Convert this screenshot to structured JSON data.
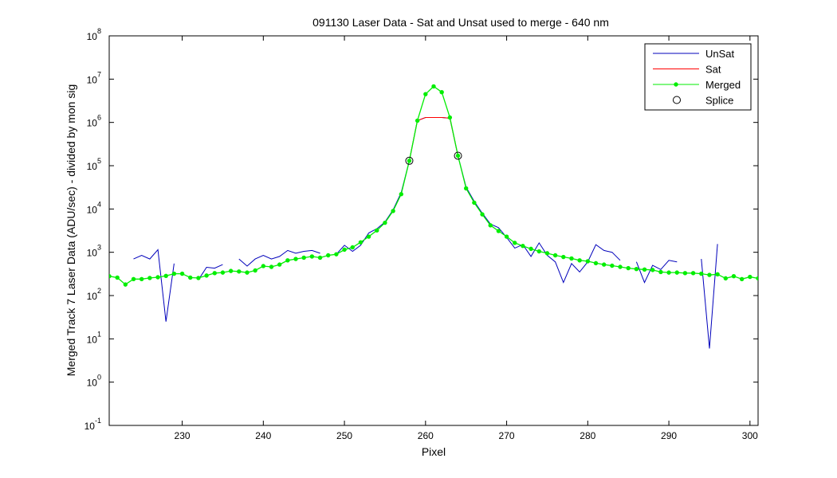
{
  "chart_data": {
    "type": "line",
    "title": "091130 Laser Data - Sat and Unsat used to merge  - 640 nm",
    "xlabel": "Pixel",
    "ylabel": "Merged Track 7 Laser Data (ADU/sec) - divided by mon sig",
    "xlim": [
      221,
      301
    ],
    "ylim_log10": [
      -1,
      8
    ],
    "y_scale": "log",
    "x_ticks": [
      230,
      240,
      250,
      260,
      270,
      280,
      290,
      300
    ],
    "y_tick_base": "10",
    "y_tick_exponents": [
      "-1",
      "0",
      "1",
      "2",
      "3",
      "4",
      "5",
      "6",
      "7",
      "8"
    ],
    "grid": false,
    "legend_position": "top-right",
    "series": [
      {
        "name": "UnSat",
        "color": "#0000bb",
        "style": "line",
        "segments": [
          [
            [
              224,
              700
            ],
            [
              225,
              850
            ],
            [
              226,
              700
            ],
            [
              227,
              1150
            ],
            [
              228,
              25
            ],
            [
              229,
              550
            ]
          ],
          [
            [
              232,
              230
            ],
            [
              233,
              450
            ],
            [
              234,
              430
            ],
            [
              235,
              520
            ]
          ],
          [
            [
              237,
              700
            ],
            [
              238,
              480
            ],
            [
              239,
              700
            ],
            [
              240,
              850
            ],
            [
              241,
              700
            ],
            [
              242,
              800
            ],
            [
              243,
              1100
            ],
            [
              244,
              950
            ],
            [
              245,
              1050
            ],
            [
              246,
              1100
            ],
            [
              247,
              950
            ]
          ],
          [
            [
              249,
              900
            ],
            [
              250,
              1450
            ],
            [
              251,
              1050
            ],
            [
              252,
              1450
            ],
            [
              253,
              2800
            ],
            [
              254,
              3500
            ],
            [
              255,
              5000
            ],
            [
              256,
              9500
            ],
            [
              257,
              24000
            ],
            [
              258,
              130000
            ],
            [
              259,
              1100000
            ],
            [
              260,
              1300000
            ],
            [
              261,
              1300000
            ],
            [
              262,
              1300000
            ],
            [
              263,
              1250000
            ],
            [
              264,
              170000
            ],
            [
              265,
              32000
            ],
            [
              266,
              15000
            ],
            [
              267,
              8000
            ],
            [
              268,
              4500
            ],
            [
              269,
              3700
            ],
            [
              270,
              2200
            ],
            [
              271,
              1250
            ],
            [
              272,
              1500
            ],
            [
              273,
              800
            ],
            [
              274,
              1650
            ],
            [
              275,
              850
            ],
            [
              276,
              600
            ],
            [
              277,
              200
            ],
            [
              278,
              550
            ],
            [
              279,
              350
            ],
            [
              280,
              600
            ],
            [
              281,
              1500
            ],
            [
              282,
              1100
            ],
            [
              283,
              1000
            ],
            [
              284,
              650
            ]
          ],
          [
            [
              286,
              600
            ],
            [
              287,
              200
            ],
            [
              288,
              500
            ],
            [
              289,
              400
            ],
            [
              290,
              650
            ],
            [
              291,
              600
            ]
          ],
          [
            [
              294,
              700
            ],
            [
              295,
              6
            ],
            [
              296,
              1550
            ]
          ]
        ]
      },
      {
        "name": "Sat",
        "color": "#ff0000",
        "style": "line",
        "segments": [
          [
            [
              258,
              130000
            ],
            [
              259,
              1100000
            ],
            [
              260,
              1300000
            ],
            [
              261,
              1300000
            ],
            [
              262,
              1300000
            ],
            [
              263,
              1250000
            ],
            [
              264,
              170000
            ]
          ]
        ]
      },
      {
        "name": "Merged",
        "color": "#00ee00",
        "style": "line-markers",
        "points": [
          [
            221,
            280
          ],
          [
            222,
            260
          ],
          [
            223,
            180
          ],
          [
            224,
            240
          ],
          [
            225,
            240
          ],
          [
            226,
            255
          ],
          [
            227,
            265
          ],
          [
            228,
            285
          ],
          [
            229,
            320
          ],
          [
            230,
            320
          ],
          [
            231,
            260
          ],
          [
            232,
            255
          ],
          [
            233,
            290
          ],
          [
            234,
            330
          ],
          [
            235,
            340
          ],
          [
            236,
            370
          ],
          [
            237,
            360
          ],
          [
            238,
            340
          ],
          [
            239,
            380
          ],
          [
            240,
            480
          ],
          [
            241,
            460
          ],
          [
            242,
            520
          ],
          [
            243,
            650
          ],
          [
            244,
            700
          ],
          [
            245,
            750
          ],
          [
            246,
            800
          ],
          [
            247,
            750
          ],
          [
            248,
            850
          ],
          [
            249,
            900
          ],
          [
            250,
            1150
          ],
          [
            251,
            1300
          ],
          [
            252,
            1700
          ],
          [
            253,
            2300
          ],
          [
            254,
            3200
          ],
          [
            255,
            4800
          ],
          [
            256,
            9000
          ],
          [
            257,
            22000
          ],
          [
            258,
            130000
          ],
          [
            259,
            1100000
          ],
          [
            260,
            4500000
          ],
          [
            261,
            6800000
          ],
          [
            262,
            5000000
          ],
          [
            263,
            1300000
          ],
          [
            264,
            170000
          ],
          [
            265,
            30000
          ],
          [
            266,
            14000
          ],
          [
            267,
            7500
          ],
          [
            268,
            4200
          ],
          [
            269,
            3100
          ],
          [
            270,
            2300
          ],
          [
            271,
            1650
          ],
          [
            272,
            1400
          ],
          [
            273,
            1200
          ],
          [
            274,
            1050
          ],
          [
            275,
            950
          ],
          [
            276,
            850
          ],
          [
            277,
            780
          ],
          [
            278,
            720
          ],
          [
            279,
            650
          ],
          [
            280,
            620
          ],
          [
            281,
            560
          ],
          [
            282,
            520
          ],
          [
            283,
            490
          ],
          [
            284,
            460
          ],
          [
            285,
            430
          ],
          [
            286,
            410
          ],
          [
            287,
            400
          ],
          [
            288,
            390
          ],
          [
            289,
            350
          ],
          [
            290,
            340
          ],
          [
            291,
            340
          ],
          [
            292,
            330
          ],
          [
            293,
            330
          ],
          [
            294,
            320
          ],
          [
            295,
            300
          ],
          [
            296,
            310
          ],
          [
            297,
            250
          ],
          [
            298,
            280
          ],
          [
            299,
            240
          ],
          [
            300,
            270
          ],
          [
            301,
            250
          ]
        ]
      },
      {
        "name": "Splice",
        "color": "#000000",
        "style": "circles",
        "points": [
          [
            258,
            130000
          ],
          [
            264,
            170000
          ]
        ]
      }
    ]
  }
}
